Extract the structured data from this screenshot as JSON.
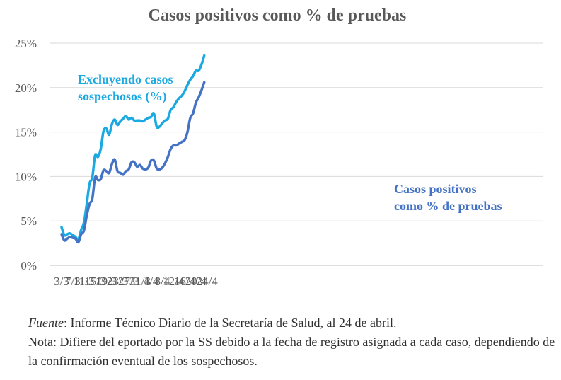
{
  "chart_data": {
    "type": "line",
    "title": "Casos positivos como % de pruebas",
    "x_tick_labels": [
      "3/3",
      "7/3",
      "11/3",
      "15/3",
      "19/3",
      "23/3",
      "27/3",
      "31/3",
      "4/4",
      "8/4",
      "12/4",
      "16/4",
      "20/4",
      "24/4"
    ],
    "y_tick_labels": [
      "0%",
      "5%",
      "10%",
      "15%",
      "20%",
      "25%"
    ],
    "ylim": [
      0,
      25
    ],
    "grid": "horizontal",
    "x_start": "3/3",
    "series": [
      {
        "name": "Excluyendo casos sospechosos (%)",
        "label_lines": [
          "Excluyendo casos",
          "sospechosos  (%)"
        ],
        "color": "#1ba9e1",
        "values": [
          4.3,
          3.4,
          3.5,
          3.6,
          3.4,
          3.2,
          2.9,
          4.0,
          4.8,
          6.9,
          9.2,
          9.9,
          12.4,
          12.2,
          13.1,
          15.1,
          15.4,
          14.7,
          15.9,
          16.4,
          15.8,
          16.2,
          16.5,
          16.8,
          16.4,
          16.6,
          16.3,
          16.3,
          16.3,
          16.2,
          16.4,
          16.6,
          16.7,
          17.1,
          15.6,
          15.6,
          16.0,
          16.3,
          16.5,
          17.5,
          17.8,
          18.4,
          18.8,
          19.1,
          19.6,
          20.3,
          20.9,
          21.3,
          21.9,
          21.9,
          22.6,
          23.6
        ]
      },
      {
        "name": "Casos positivos como % de pruebas",
        "label_lines": [
          "Casos positivos",
          "como % de pruebas"
        ],
        "color": "#4472c4",
        "values": [
          3.5,
          2.8,
          3.0,
          3.2,
          3.1,
          3.0,
          2.6,
          3.5,
          3.9,
          5.6,
          6.9,
          7.5,
          9.9,
          9.6,
          9.7,
          10.7,
          10.6,
          10.4,
          11.4,
          11.9,
          10.6,
          10.4,
          10.2,
          10.6,
          10.8,
          11.6,
          11.6,
          11.1,
          11.3,
          10.9,
          10.8,
          11.0,
          11.8,
          11.8,
          10.9,
          10.8,
          11.0,
          11.5,
          12.2,
          13.1,
          13.5,
          13.5,
          13.7,
          13.9,
          14.1,
          15.0,
          16.6,
          17.1,
          18.3,
          18.9,
          19.7,
          20.6
        ]
      }
    ]
  },
  "notes": {
    "source_label": "Fuente",
    "source_text": ": Informe Técnico Diario de la Secretaría de Salud, al 24 de abril.",
    "note_line": "Nota: Difiere del eportado por la SS debido a la fecha de registro asignada a cada caso, dependiendo de la confirmación eventual de los sospechosos."
  }
}
